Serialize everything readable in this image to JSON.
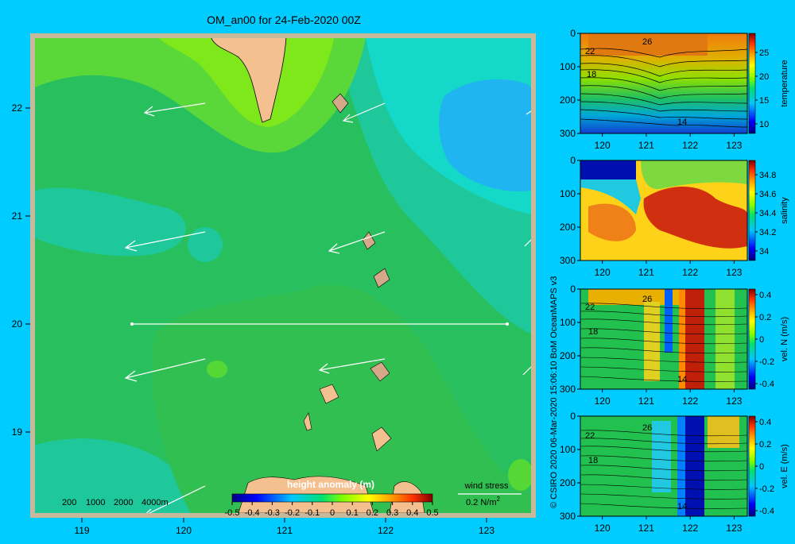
{
  "title": "OM_an00 for 24-Feb-2020 00Z",
  "credit": "© CSIRO 2020   06-Mar-2020 15:06:10 BoM OceanMAPS v3",
  "colors": {
    "background": "#00ccff",
    "land": "#f5c08f",
    "frame": "#c8b89c"
  },
  "map": {
    "x_ticks": [
      "119",
      "120",
      "121",
      "122",
      "123"
    ],
    "y_ticks": [
      "22",
      "21",
      "20",
      "19"
    ],
    "depth_legend": [
      "200",
      "1000",
      "2000",
      "4000m"
    ],
    "colorbar_title": "height anomaly (m)",
    "colorbar_ticks": [
      "-0.5",
      "-0.4",
      "-0.3",
      "-0.2",
      "-0.1",
      "0",
      "0.1",
      "0.2",
      "0.3",
      "0.4",
      "0.5"
    ],
    "wind_label": "wind stress",
    "wind_scale": "0.2 N/m",
    "wind_scale_exp": "2"
  },
  "chart_data": [
    {
      "type": "heatmap",
      "title": "OM_an00 for 24-Feb-2020 00Z",
      "xlabel": "",
      "ylabel": "",
      "xlim": [
        118.5,
        123.5
      ],
      "ylim": [
        18.2,
        22.7
      ],
      "colorbar": {
        "label": "height anomaly (m)",
        "range": [
          -0.5,
          0.5
        ]
      },
      "transect": {
        "lon": [
          119.5,
          123.3
        ],
        "lat": [
          20,
          20
        ]
      },
      "features": [
        "Taiwan coast (land) near 120.5-121 E, 22-22.7 N",
        "Batanes / Babuyan islands",
        "Luzon coast at bottom"
      ],
      "wind_stress_arrows": "westward to south-westward"
    },
    {
      "type": "heatmap",
      "ylabel": "",
      "colorbar_label": "temperature",
      "xlim": [
        119.5,
        123.3
      ],
      "ylim": [
        300,
        0
      ],
      "colorbar_range": [
        8,
        29
      ],
      "colorbar_ticks": [
        "25",
        "20",
        "15",
        "10"
      ],
      "contour_labels": [
        "26",
        "22",
        "18",
        "14"
      ],
      "x_ticks": [
        "120",
        "121",
        "122",
        "123"
      ],
      "y_ticks": [
        "0",
        "100",
        "200",
        "300"
      ]
    },
    {
      "type": "heatmap",
      "ylabel": "",
      "colorbar_label": "salinity",
      "xlim": [
        119.5,
        123.3
      ],
      "ylim": [
        300,
        0
      ],
      "colorbar_range": [
        33.9,
        34.95
      ],
      "colorbar_ticks": [
        "34.8",
        "34.6",
        "34.4",
        "34.2",
        "34"
      ],
      "contour_labels": [],
      "x_ticks": [
        "120",
        "121",
        "122",
        "123"
      ],
      "y_ticks": [
        "0",
        "100",
        "200",
        "300"
      ]
    },
    {
      "type": "heatmap",
      "ylabel": "",
      "colorbar_label": "vel. N (m/s)",
      "xlim": [
        119.5,
        123.3
      ],
      "ylim": [
        300,
        0
      ],
      "colorbar_range": [
        -0.45,
        0.45
      ],
      "colorbar_ticks": [
        "0.4",
        "0.2",
        "0",
        "-0.2",
        "-0.4"
      ],
      "contour_labels": [
        "26",
        "22",
        "18",
        "14"
      ],
      "x_ticks": [
        "120",
        "121",
        "122",
        "123"
      ],
      "y_ticks": [
        "0",
        "100",
        "200",
        "300"
      ]
    },
    {
      "type": "heatmap",
      "ylabel": "",
      "colorbar_label": "vel. E (m/s)",
      "xlim": [
        119.5,
        123.3
      ],
      "ylim": [
        300,
        0
      ],
      "colorbar_range": [
        -0.45,
        0.45
      ],
      "colorbar_ticks": [
        "0.4",
        "0.2",
        "0",
        "-0.2",
        "-0.4"
      ],
      "contour_labels": [
        "26",
        "22",
        "18",
        "14"
      ],
      "x_ticks": [
        "120",
        "121",
        "122",
        "123"
      ],
      "y_ticks": [
        "0",
        "100",
        "200",
        "300"
      ]
    }
  ]
}
